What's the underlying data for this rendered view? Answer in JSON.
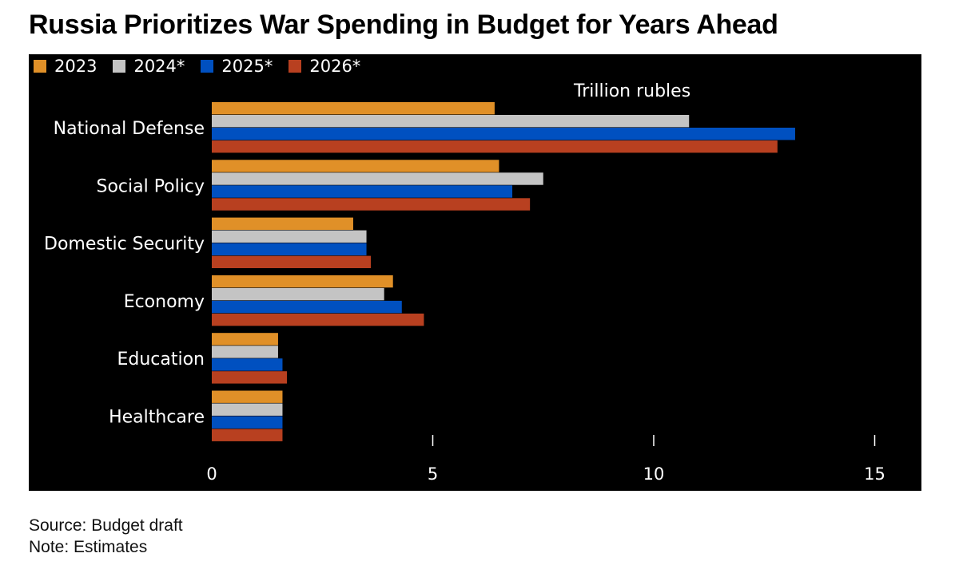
{
  "title": "Russia Prioritizes War Spending in Budget for Years Ahead",
  "unit_label": "Trillion rubles",
  "footer": {
    "source": "Source: Budget draft",
    "note": "Note: Estimates"
  },
  "chart_data": {
    "type": "bar",
    "orientation": "horizontal",
    "title": "Russia Prioritizes War Spending in Budget for Years Ahead",
    "xlabel": "Trillion rubles",
    "ylabel": "",
    "categories": [
      "National Defense",
      "Social Policy",
      "Domestic Security",
      "Economy",
      "Education",
      "Healthcare"
    ],
    "series": [
      {
        "name": "2023",
        "color": "#e09028",
        "values": [
          6.4,
          6.5,
          3.2,
          4.1,
          1.5,
          1.6
        ]
      },
      {
        "name": "2024*",
        "color": "#c4c4c4",
        "values": [
          10.8,
          7.5,
          3.5,
          3.9,
          1.5,
          1.6
        ]
      },
      {
        "name": "2025*",
        "color": "#0050c0",
        "values": [
          13.2,
          6.8,
          3.5,
          4.3,
          1.6,
          1.6
        ]
      },
      {
        "name": "2026*",
        "color": "#b84020",
        "values": [
          12.8,
          7.2,
          3.6,
          4.8,
          1.7,
          1.6
        ]
      }
    ],
    "xlim": [
      0,
      15
    ],
    "xticks": [
      0,
      5,
      10,
      15
    ],
    "grid": false,
    "legend_position": "top-left",
    "background": "#000000"
  }
}
